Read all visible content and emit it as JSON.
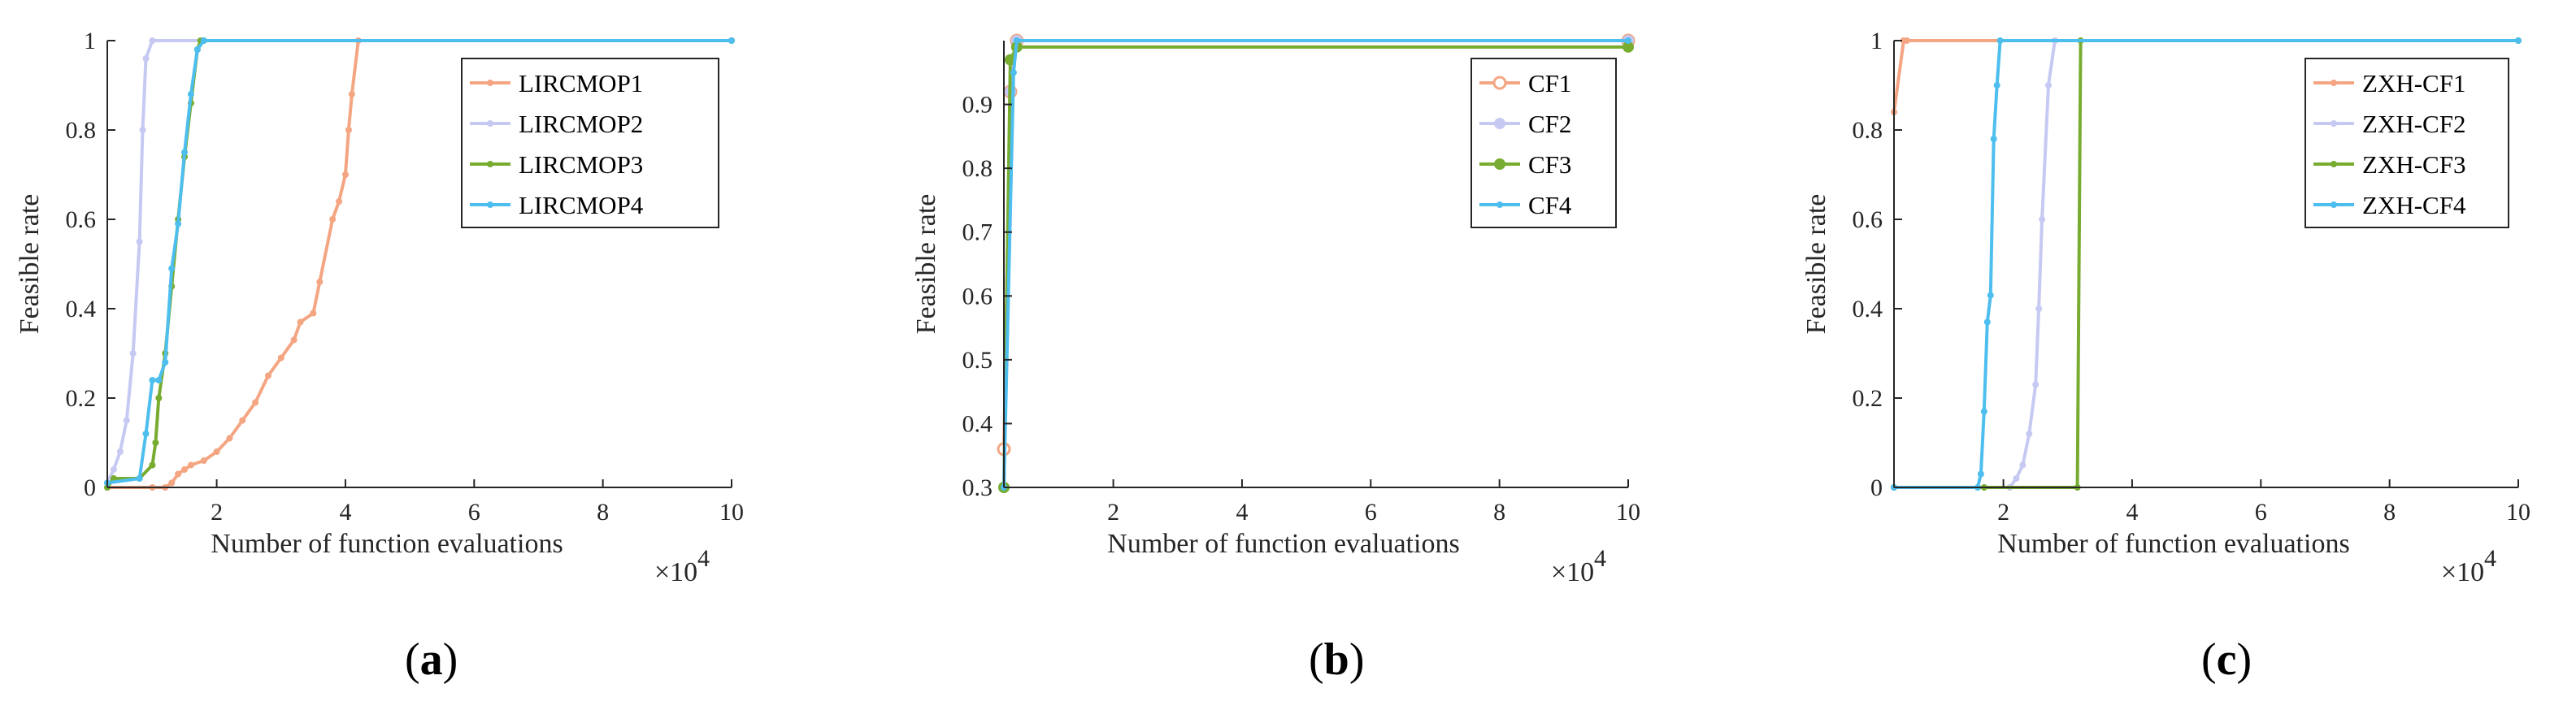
{
  "chart_data": [
    {
      "type": "line",
      "caption_letter": "a",
      "xlabel": "Number of function evaluations",
      "ylabel": "Feasible rate",
      "x_multiplier": "×10",
      "x_exponent": "4",
      "xlim": [
        0.3,
        10
      ],
      "ylim": [
        0,
        1
      ],
      "xticks": [
        2,
        4,
        6,
        8,
        10
      ],
      "yticks": [
        0,
        0.2,
        0.4,
        0.6,
        0.8,
        1
      ],
      "ytick_labels": [
        "0",
        "0.2",
        "0.4",
        "0.6",
        "0.8",
        "1"
      ],
      "legend_position": "top-right",
      "series": [
        {
          "name": "LIRCMOP1",
          "color": "#f4a582",
          "marker": "dot",
          "x": [
            0.3,
            1.0,
            1.2,
            1.3,
            1.4,
            1.5,
            1.6,
            1.8,
            2.0,
            2.2,
            2.4,
            2.6,
            2.8,
            3.0,
            3.2,
            3.3,
            3.5,
            3.6,
            3.8,
            3.9,
            4.0,
            4.05,
            4.1,
            4.2,
            10
          ],
          "y": [
            0,
            0,
            0,
            0.01,
            0.03,
            0.04,
            0.05,
            0.06,
            0.08,
            0.11,
            0.15,
            0.19,
            0.25,
            0.29,
            0.33,
            0.37,
            0.39,
            0.46,
            0.6,
            0.64,
            0.7,
            0.8,
            0.88,
            1,
            1
          ]
        },
        {
          "name": "LIRCMOP2",
          "color": "#c6c9f2",
          "marker": "dot",
          "x": [
            0.3,
            0.4,
            0.5,
            0.6,
            0.7,
            0.8,
            0.85,
            0.9,
            1.0,
            10
          ],
          "y": [
            0.01,
            0.04,
            0.08,
            0.15,
            0.3,
            0.55,
            0.8,
            0.96,
            1,
            1
          ]
        },
        {
          "name": "LIRCMOP3",
          "color": "#77ac30",
          "marker": "dot",
          "x": [
            0.3,
            0.4,
            0.8,
            1.0,
            1.05,
            1.1,
            1.2,
            1.3,
            1.4,
            1.5,
            1.6,
            1.7,
            1.75,
            1.8,
            10
          ],
          "y": [
            0,
            0.02,
            0.02,
            0.05,
            0.1,
            0.2,
            0.3,
            0.45,
            0.6,
            0.74,
            0.86,
            0.98,
            1,
            1,
            1
          ]
        },
        {
          "name": "LIRCMOP4",
          "color": "#4dbeee",
          "marker": "dot",
          "x": [
            0.3,
            0.8,
            0.9,
            1.0,
            1.1,
            1.2,
            1.3,
            1.4,
            1.5,
            1.6,
            1.7,
            1.8,
            10
          ],
          "y": [
            0.01,
            0.02,
            0.12,
            0.24,
            0.24,
            0.28,
            0.49,
            0.59,
            0.75,
            0.88,
            0.98,
            1,
            1
          ]
        }
      ]
    },
    {
      "type": "line",
      "caption_letter": "b",
      "xlabel": "Number of function evaluations",
      "ylabel": "Feasible rate",
      "x_multiplier": "×10",
      "x_exponent": "4",
      "xlim": [
        0.3,
        10
      ],
      "ylim": [
        0.3,
        1
      ],
      "xticks": [
        2,
        4,
        6,
        8,
        10
      ],
      "yticks": [
        0.3,
        0.4,
        0.5,
        0.6,
        0.7,
        0.8,
        0.9
      ],
      "ytick_labels": [
        "0.3",
        "0.4",
        "0.5",
        "0.6",
        "0.7",
        "0.8",
        "0.9"
      ],
      "legend_position": "top-right",
      "series": [
        {
          "name": "CF1",
          "color": "#f4a582",
          "marker": "circle",
          "x": [
            0.3,
            0.4,
            0.5,
            10
          ],
          "y": [
            0.36,
            0.92,
            1,
            1
          ]
        },
        {
          "name": "CF2",
          "color": "#c6c9f2",
          "marker": "dot-large",
          "x": [
            0.3,
            0.4,
            0.5,
            10
          ],
          "y": [
            0.3,
            0.92,
            1,
            1
          ]
        },
        {
          "name": "CF3",
          "color": "#77ac30",
          "marker": "dot-large",
          "x": [
            0.3,
            0.4,
            0.5,
            10
          ],
          "y": [
            0.3,
            0.97,
            0.99,
            0.99
          ]
        },
        {
          "name": "CF4",
          "color": "#4dbeee",
          "marker": "dot",
          "x": [
            0.3,
            0.45,
            0.5,
            10
          ],
          "y": [
            0.3,
            0.95,
            1,
            1
          ]
        }
      ]
    },
    {
      "type": "line",
      "caption_letter": "c",
      "xlabel": "Number of function evaluations",
      "ylabel": "Feasible rate",
      "x_multiplier": "×10",
      "x_exponent": "4",
      "xlim": [
        0.3,
        10
      ],
      "ylim": [
        0,
        1
      ],
      "xticks": [
        2,
        4,
        6,
        8,
        10
      ],
      "yticks": [
        0,
        0.2,
        0.4,
        0.6,
        0.8,
        1
      ],
      "ytick_labels": [
        "0",
        "0.2",
        "0.4",
        "0.6",
        "0.8",
        "1"
      ],
      "legend_position": "top-right",
      "series": [
        {
          "name": "ZXH-CF1",
          "color": "#f4a582",
          "marker": "dot",
          "x": [
            0.3,
            0.45,
            0.5,
            10
          ],
          "y": [
            0.84,
            1,
            1,
            1
          ]
        },
        {
          "name": "ZXH-CF2",
          "color": "#c6c9f2",
          "marker": "dot",
          "x": [
            0.3,
            2.1,
            2.2,
            2.3,
            2.4,
            2.5,
            2.55,
            2.6,
            2.7,
            2.8,
            10
          ],
          "y": [
            0,
            0,
            0.02,
            0.05,
            0.12,
            0.23,
            0.4,
            0.6,
            0.9,
            1,
            1
          ]
        },
        {
          "name": "ZXH-CF3",
          "color": "#77ac30",
          "marker": "dot",
          "x": [
            0.3,
            1.7,
            3.15,
            3.2,
            10
          ],
          "y": [
            0,
            0,
            0,
            1,
            1
          ]
        },
        {
          "name": "ZXH-CF4",
          "color": "#4dbeee",
          "marker": "dot",
          "x": [
            0.3,
            1.6,
            1.65,
            1.7,
            1.75,
            1.8,
            1.85,
            1.9,
            1.95,
            10
          ],
          "y": [
            0,
            0,
            0.03,
            0.17,
            0.37,
            0.43,
            0.78,
            0.9,
            1,
            1
          ]
        }
      ]
    }
  ]
}
